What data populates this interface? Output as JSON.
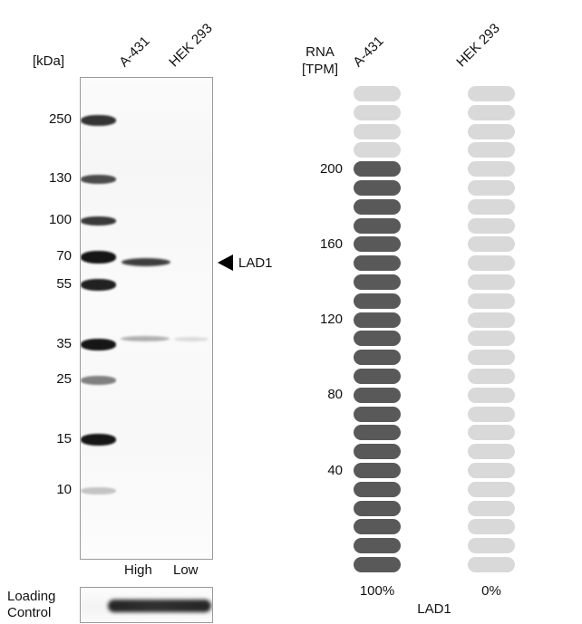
{
  "western_blot": {
    "kda_unit_label": "[kDa]",
    "lane_labels": [
      "A-431",
      "HEK 293"
    ],
    "marker_labels": [
      "250",
      "130",
      "100",
      "70",
      "55",
      "35",
      "25",
      "15",
      "10"
    ],
    "band_annotation": "LAD1",
    "expression_levels": [
      "High",
      "Low"
    ],
    "loading_control_line1": "Loading",
    "loading_control_line2": "Control"
  },
  "chart_data": {
    "type": "bar",
    "variant": "segmented-pill-columns",
    "title": "LAD1",
    "ylabel_line1": "RNA",
    "ylabel_line2": "[TPM]",
    "categories": [
      "A-431",
      "HEK 293"
    ],
    "series": [
      {
        "name": "A-431",
        "tpm": 220,
        "filled_segments": 22,
        "percent_label": "100%"
      },
      {
        "name": "HEK 293",
        "tpm": 0,
        "filled_segments": 0,
        "percent_label": "0%"
      }
    ],
    "total_segments": 26,
    "tpm_per_segment": 10,
    "yticks": [
      "200",
      "160",
      "120",
      "80",
      "40"
    ],
    "ytick_rows": [
      4,
      8,
      12,
      16,
      20
    ],
    "ylim": [
      0,
      260
    ],
    "grid": false,
    "legend": false,
    "colors": {
      "filled": "#595959",
      "empty": "#d9d9d9"
    }
  }
}
